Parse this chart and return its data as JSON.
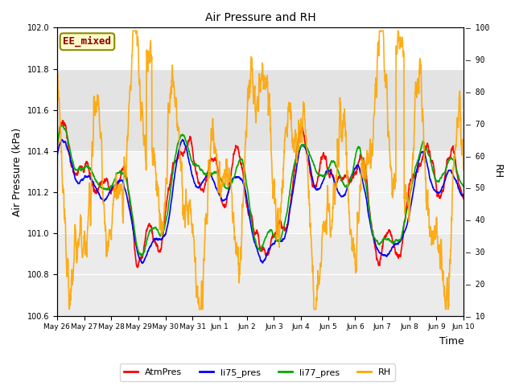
{
  "title": "Air Pressure and RH",
  "xlabel": "Time",
  "ylabel_left": "Air Pressure (kPa)",
  "ylabel_right": "RH",
  "ylim_left": [
    100.6,
    102.0
  ],
  "ylim_right": [
    10,
    100
  ],
  "annotation_text": "EE_mixed",
  "annotation_color": "#8B0000",
  "annotation_bg": "#FFFACD",
  "annotation_edge": "#8B8B00",
  "legend_entries": [
    "AtmPres",
    "li75_pres",
    "li77_pres",
    "RH"
  ],
  "line_colors": {
    "AtmPres": "#FF0000",
    "li75_pres": "#0000FF",
    "li77_pres": "#00AA00",
    "RH": "#FFA500"
  },
  "line_widths": {
    "AtmPres": 1.2,
    "li75_pres": 1.2,
    "li77_pres": 1.2,
    "RH": 1.2
  },
  "tick_dates": [
    "May 26",
    "May 27",
    "May 28",
    "May 29",
    "May 30",
    "May 31",
    "Jun 1",
    "Jun 2",
    "Jun 3",
    "Jun 4",
    "Jun 5",
    "Jun 6",
    "Jun 7",
    "Jun 8",
    "Jun 9",
    "Jun 10"
  ],
  "yticks_left": [
    100.6,
    100.8,
    101.0,
    101.2,
    101.4,
    101.6,
    101.8,
    102.0
  ],
  "yticks_right_labels": [
    10,
    20,
    30,
    40,
    50,
    60,
    70,
    80,
    90,
    100
  ],
  "shaded_bands": [
    {
      "ymin": 101.4,
      "ymax": 101.8,
      "color": "#d8d8d8",
      "alpha": 0.7
    },
    {
      "ymin": 101.0,
      "ymax": 101.4,
      "color": "#e8e8e8",
      "alpha": 0.5
    },
    {
      "ymin": 100.6,
      "ymax": 101.0,
      "color": "#d8d8d8",
      "alpha": 0.5
    }
  ],
  "fig_facecolor": "#ffffff",
  "plot_facecolor": "#ffffff"
}
